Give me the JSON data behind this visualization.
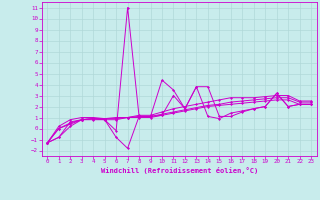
{
  "xlabel": "Windchill (Refroidissement éolien,°C)",
  "bg_color": "#c8ecec",
  "grid_color": "#b0d8d8",
  "line_color": "#cc00cc",
  "xlim": [
    -0.5,
    23.5
  ],
  "ylim": [
    -2.5,
    11.5
  ],
  "xticks": [
    0,
    1,
    2,
    3,
    4,
    5,
    6,
    7,
    8,
    9,
    10,
    11,
    12,
    13,
    14,
    15,
    16,
    17,
    18,
    19,
    20,
    21,
    22,
    23
  ],
  "yticks": [
    -2,
    -1,
    0,
    1,
    2,
    3,
    4,
    5,
    6,
    7,
    8,
    9,
    10,
    11
  ],
  "series_x": [
    0,
    1,
    2,
    3,
    4,
    5,
    6,
    7,
    8,
    9,
    10,
    11,
    12,
    13,
    14,
    15,
    16,
    17,
    18,
    19,
    20,
    21,
    22,
    23
  ],
  "series": [
    [
      -1.3,
      -0.8,
      0.2,
      0.8,
      0.9,
      0.8,
      -0.8,
      -1.8,
      1.1,
      1.1,
      1.2,
      3.0,
      1.8,
      3.8,
      1.1,
      0.9,
      1.4,
      1.6,
      1.8,
      2.0,
      3.2,
      2.0,
      2.2,
      2.2
    ],
    [
      -1.3,
      -0.8,
      0.6,
      0.8,
      0.9,
      0.8,
      -0.2,
      11.0,
      1.1,
      1.1,
      4.4,
      3.5,
      1.8,
      3.8,
      3.8,
      1.1,
      1.1,
      1.5,
      1.8,
      2.0,
      3.2,
      2.0,
      2.2,
      2.2
    ],
    [
      -1.3,
      0.2,
      0.8,
      1.0,
      1.0,
      0.9,
      1.0,
      1.0,
      1.2,
      1.2,
      1.5,
      1.8,
      2.0,
      2.2,
      2.4,
      2.6,
      2.8,
      2.8,
      2.8,
      2.9,
      3.0,
      3.0,
      2.5,
      2.5
    ],
    [
      -1.3,
      0.0,
      0.5,
      0.8,
      0.9,
      0.9,
      0.9,
      1.0,
      1.1,
      1.1,
      1.3,
      1.5,
      1.7,
      1.9,
      2.1,
      2.2,
      2.4,
      2.5,
      2.6,
      2.7,
      2.8,
      2.8,
      2.4,
      2.4
    ],
    [
      -1.3,
      0.0,
      0.4,
      0.8,
      0.8,
      0.8,
      0.8,
      1.0,
      1.0,
      1.0,
      1.2,
      1.4,
      1.6,
      1.8,
      2.0,
      2.1,
      2.2,
      2.3,
      2.4,
      2.5,
      2.6,
      2.6,
      2.2,
      2.2
    ]
  ]
}
